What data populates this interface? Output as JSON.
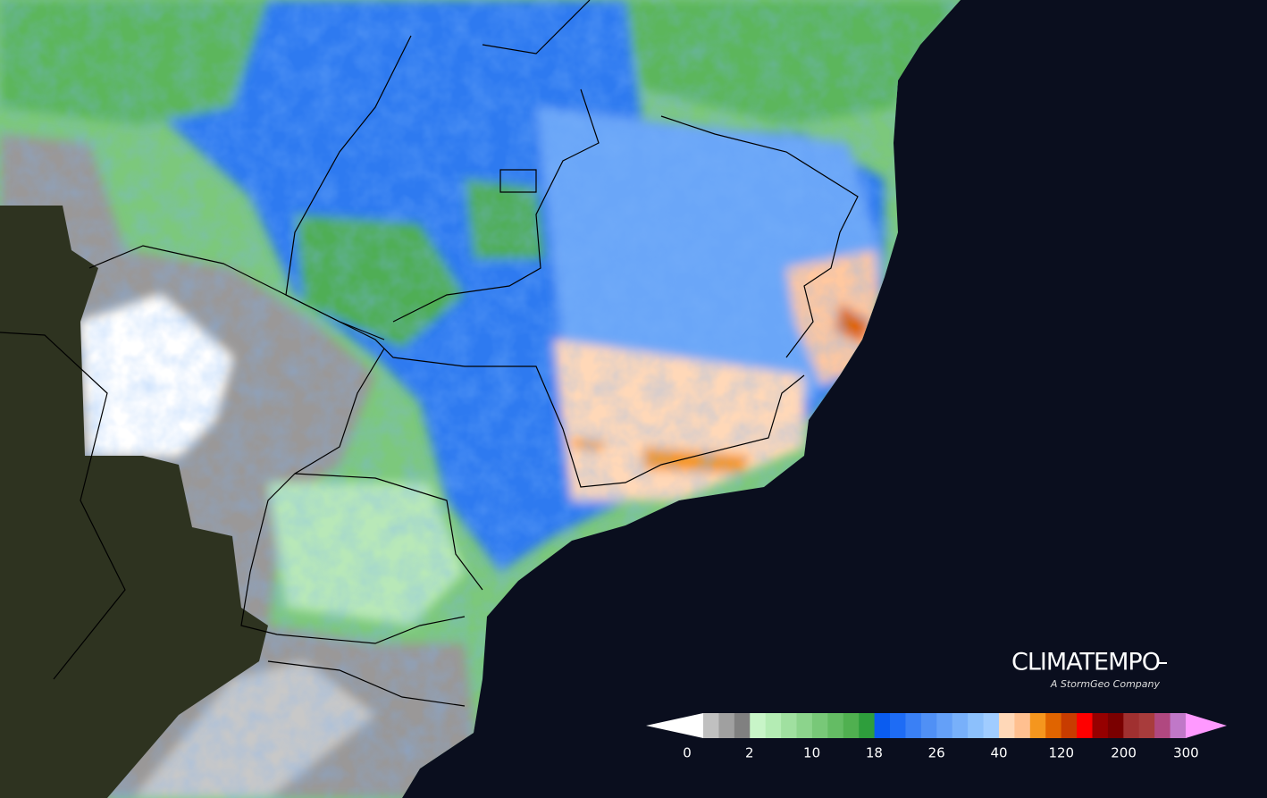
{
  "brand": {
    "name": "CLIMATEMPO",
    "tagline": "A StormGeo Company"
  },
  "legend": {
    "ticks": [
      0,
      2,
      10,
      18,
      26,
      40,
      120,
      200,
      300
    ],
    "start_color": "#ffffff",
    "end_color": "#ff99ff",
    "colors": [
      "#c0c0c0",
      "#a0a0a0",
      "#808080",
      "#c8f5c8",
      "#b4ecb4",
      "#a0e0a0",
      "#8cd48c",
      "#78c878",
      "#64bc64",
      "#50b050",
      "#2e9e3c",
      "#0a5cf0",
      "#1e6cf5",
      "#3a80f5",
      "#5090f5",
      "#64a0f8",
      "#78b0fa",
      "#8cc0fc",
      "#a0ccff",
      "#ffd8b8",
      "#ffc090",
      "#f5961e",
      "#e06400",
      "#c83c00",
      "#ff0000",
      "#960000",
      "#7a0000",
      "#a03030",
      "#a83c3c",
      "#b04880",
      "#c078c8"
    ]
  }
}
